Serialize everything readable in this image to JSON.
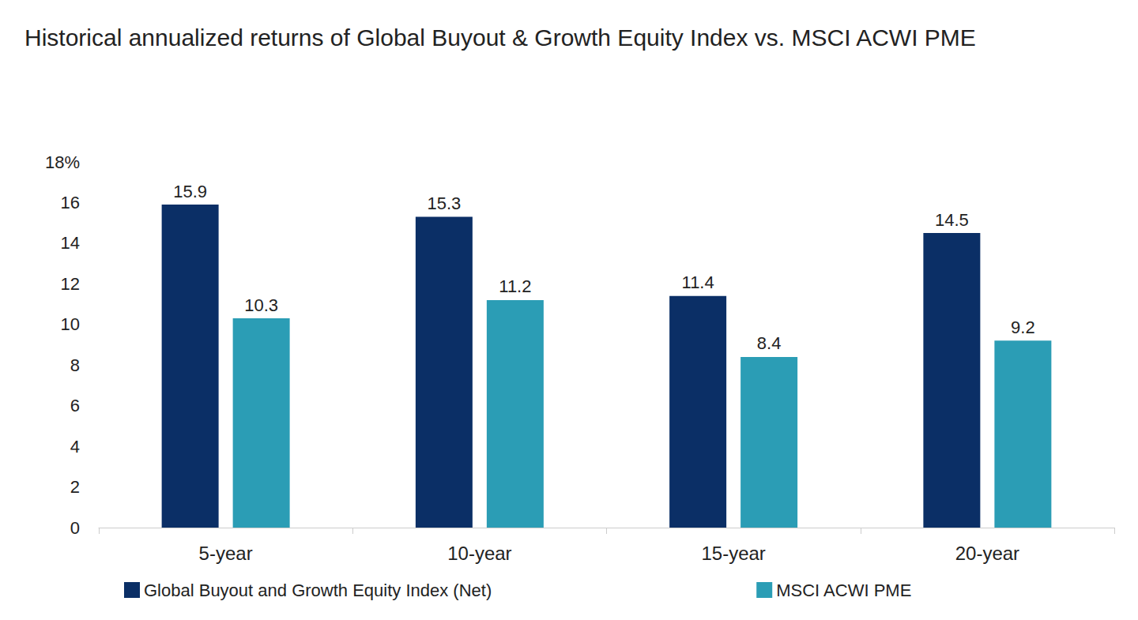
{
  "chart_data": {
    "type": "bar",
    "title": "Historical annualized returns of Global Buyout & Growth Equity Index vs. MSCI ACWI PME",
    "categories": [
      "5-year",
      "10-year",
      "15-year",
      "20-year"
    ],
    "series": [
      {
        "name": "Global Buyout and Growth Equity Index (Net)",
        "color": "#0b2f66",
        "values": [
          15.9,
          15.3,
          11.4,
          14.5
        ]
      },
      {
        "name": "MSCI ACWI PME",
        "color": "#2b9db5",
        "values": [
          10.3,
          11.2,
          8.4,
          9.2
        ]
      }
    ],
    "ylim": [
      0,
      18
    ],
    "yticks": [
      0,
      2,
      4,
      6,
      8,
      10,
      12,
      14,
      16,
      {
        "value": 18,
        "label": "18%"
      }
    ],
    "grid": false,
    "legend": "bottom-left",
    "data_labels": true
  }
}
